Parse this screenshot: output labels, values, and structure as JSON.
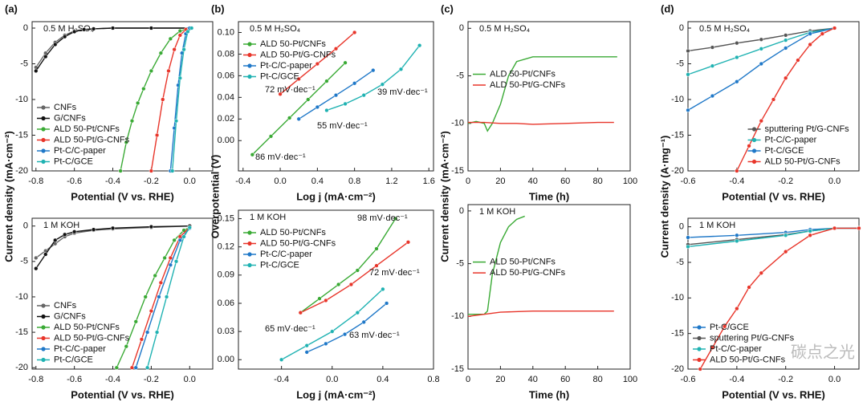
{
  "chart_data": [
    {
      "type": "line",
      "panel": "(a)",
      "condition": "0.5 M H₂SO₄",
      "xlabel": "Potential (V vs. RHE)",
      "ylabel": "Current density (mA·cm⁻²)",
      "markers": true,
      "legend": "lower left",
      "xlim": [
        -0.82,
        0.12
      ],
      "xticks": [
        -0.8,
        -0.6,
        -0.4,
        -0.2,
        {
          "value": 0,
          "label": "0.0"
        }
      ],
      "ylim": [
        -20,
        0.9
      ],
      "yticks": [
        0,
        -5,
        -10,
        -15,
        -20
      ],
      "series": [
        {
          "name": "CNFs",
          "color": "#666666",
          "x": [
            -0.8,
            -0.75,
            -0.7,
            -0.65,
            -0.6,
            -0.55,
            -0.5,
            -0.4,
            -0.2,
            0
          ],
          "values": [
            -5.5,
            -3.5,
            -2,
            -1,
            -0.4,
            -0.2,
            -0.1,
            0,
            0,
            0
          ]
        },
        {
          "name": "G/CNFs",
          "color": "#111111",
          "x": [
            -0.8,
            -0.75,
            -0.7,
            -0.65,
            -0.6,
            -0.55,
            -0.5,
            -0.4,
            -0.2,
            0
          ],
          "values": [
            -6,
            -4,
            -2.3,
            -1.2,
            -0.5,
            -0.2,
            -0.1,
            0,
            0,
            0
          ]
        },
        {
          "name": "ALD 50-Pt/CNFs",
          "color": "#3aaa35",
          "x": [
            -0.36,
            -0.33,
            -0.3,
            -0.27,
            -0.24,
            -0.2,
            -0.15,
            -0.1,
            -0.05,
            0
          ],
          "values": [
            -20,
            -16,
            -13,
            -10.5,
            -8.5,
            -6,
            -3.5,
            -1.5,
            -0.4,
            0
          ]
        },
        {
          "name": "ALD 50-Pt/G-CNFs",
          "color": "#e8352a",
          "x": [
            -0.2,
            -0.17,
            -0.14,
            -0.11,
            -0.08,
            -0.05,
            -0.02,
            0
          ],
          "values": [
            -20,
            -15,
            -10,
            -6,
            -3,
            -1,
            -0.2,
            0
          ]
        },
        {
          "name": "Pt-C/C-paper",
          "color": "#1f78c8",
          "x": [
            -0.1,
            -0.08,
            -0.06,
            -0.04,
            -0.02,
            0
          ],
          "values": [
            -20,
            -14,
            -8,
            -3.5,
            -0.8,
            0
          ]
        },
        {
          "name": "Pt-C/GCE",
          "color": "#1fb2b2",
          "x": [
            -0.09,
            -0.07,
            -0.05,
            -0.03,
            -0.01,
            0.01
          ],
          "values": [
            -20,
            -13,
            -7,
            -3,
            -0.5,
            0
          ]
        }
      ]
    },
    {
      "type": "line",
      "condition": "1 M KOH",
      "xlabel": "Potential (V vs. RHE)",
      "markers": true,
      "legend": "lower left",
      "xlim": [
        -0.82,
        0.12
      ],
      "xticks": [
        -0.8,
        -0.6,
        -0.4,
        -0.2,
        {
          "value": 0,
          "label": "0.0"
        }
      ],
      "ylim": [
        -20.2,
        1.1
      ],
      "yticks": [
        0,
        -5,
        -10,
        -15,
        -20
      ],
      "series": [
        {
          "name": "CNFs",
          "color": "#666666",
          "x": [
            -0.8,
            -0.75,
            -0.7,
            -0.65,
            -0.6,
            -0.5,
            -0.4,
            -0.2,
            0
          ],
          "values": [
            -4.5,
            -3.5,
            -2.5,
            -1.5,
            -1,
            -0.6,
            -0.4,
            -0.2,
            0
          ]
        },
        {
          "name": "G/CNFs",
          "color": "#111111",
          "x": [
            -0.8,
            -0.75,
            -0.7,
            -0.65,
            -0.6,
            -0.5,
            -0.4,
            -0.2,
            0
          ],
          "values": [
            -6,
            -4,
            -2,
            -1.2,
            -0.8,
            -0.5,
            -0.3,
            -0.1,
            0
          ]
        },
        {
          "name": "ALD 50-Pt/CNFs",
          "color": "#3aaa35",
          "x": [
            -0.38,
            -0.33,
            -0.28,
            -0.23,
            -0.18,
            -0.13,
            -0.08,
            -0.03,
            0
          ],
          "values": [
            -20,
            -17,
            -13.5,
            -10,
            -7,
            -4.5,
            -2,
            -0.6,
            -0.2
          ]
        },
        {
          "name": "ALD 50-Pt/G-CNFs",
          "color": "#e8352a",
          "x": [
            -0.3,
            -0.25,
            -0.2,
            -0.15,
            -0.1,
            -0.05,
            0
          ],
          "values": [
            -20,
            -16,
            -12,
            -8,
            -4.5,
            -1.5,
            -0.2
          ]
        },
        {
          "name": "Pt-C/C-paper",
          "color": "#1f78c8",
          "x": [
            -0.28,
            -0.22,
            -0.16,
            -0.1,
            -0.05,
            0
          ],
          "values": [
            -20,
            -15,
            -10,
            -5.5,
            -2,
            -0.3
          ]
        },
        {
          "name": "Pt-C/GCE",
          "color": "#1fb2b2",
          "x": [
            -0.22,
            -0.17,
            -0.12,
            -0.07,
            -0.03,
            0
          ],
          "values": [
            -20,
            -15,
            -10,
            -5,
            -1.5,
            -0.2
          ]
        }
      ]
    },
    {
      "type": "line",
      "panel": "(b)",
      "condition": "0.5 M H₂SO₄",
      "xlabel": "Log j (mA·cm⁻²)",
      "ylabel": "Overpotential (V)",
      "markers": true,
      "legend": "upper left",
      "xlim": [
        -0.45,
        1.65
      ],
      "xticks": [
        -0.4,
        {
          "value": 0,
          "label": "0.0"
        },
        0.4,
        0.8,
        1.2,
        1.6
      ],
      "ylim": [
        -0.028,
        0.11
      ],
      "yticks": [
        {
          "value": 0,
          "label": "0.00"
        },
        0.02,
        0.04,
        0.06,
        0.08,
        {
          "value": 0.1,
          "label": "0.10"
        }
      ],
      "annotations": [
        "72 mV·dec⁻¹",
        "55 mV·dec⁻¹",
        "39 mV·dec⁻¹",
        "86 mV·dec⁻¹"
      ],
      "series": [
        {
          "name": "ALD 50-Pt/CNFs",
          "color": "#3aaa35",
          "x": [
            -0.3,
            -0.1,
            0.1,
            0.3,
            0.5,
            0.7
          ],
          "values": [
            -0.013,
            0.004,
            0.021,
            0.038,
            0.055,
            0.072
          ]
        },
        {
          "name": "ALD 50-Pt/G-CNFs",
          "color": "#e8352a",
          "x": [
            0,
            0.2,
            0.4,
            0.6,
            0.8
          ],
          "values": [
            0.043,
            0.057,
            0.071,
            0.085,
            0.1
          ]
        },
        {
          "name": "Pt-C/C-paper",
          "color": "#1f78c8",
          "x": [
            0.2,
            0.4,
            0.6,
            0.8,
            1.0
          ],
          "values": [
            0.02,
            0.031,
            0.042,
            0.053,
            0.065
          ]
        },
        {
          "name": "Pt-C/GCE",
          "color": "#1fb2b2",
          "x": [
            0.5,
            0.7,
            0.9,
            1.1,
            1.3,
            1.5
          ],
          "values": [
            0.028,
            0.034,
            0.042,
            0.052,
            0.066,
            0.088
          ]
        }
      ]
    },
    {
      "type": "line",
      "condition": "1 M KOH",
      "xlabel": "Log j (mA·cm⁻²)",
      "markers": true,
      "legend": "upper left",
      "xlim": [
        -0.74,
        0.8
      ],
      "xticks": [
        -0.4,
        {
          "value": 0,
          "label": "0.0"
        },
        0.4,
        0.8
      ],
      "ylim": [
        -0.01,
        0.159
      ],
      "yticks": [
        {
          "value": 0,
          "label": "0.00"
        },
        0.03,
        0.06,
        0.09,
        0.12,
        0.15
      ],
      "annotations": [
        "98 mV·dec⁻¹",
        "72 mV·dec⁻¹",
        "65 mV·dec⁻¹",
        "63 mV·dec⁻¹"
      ],
      "series": [
        {
          "name": "ALD 50-Pt/CNFs",
          "color": "#3aaa35",
          "x": [
            -0.25,
            -0.1,
            0.05,
            0.2,
            0.35,
            0.5
          ],
          "values": [
            0.05,
            0.065,
            0.08,
            0.095,
            0.118,
            0.15
          ]
        },
        {
          "name": "ALD 50-Pt/G-CNFs",
          "color": "#e8352a",
          "x": [
            -0.25,
            -0.05,
            0.15,
            0.35,
            0.6
          ],
          "values": [
            0.05,
            0.063,
            0.08,
            0.1,
            0.125
          ]
        },
        {
          "name": "Pt-C/C-paper",
          "color": "#1f78c8",
          "x": [
            -0.2,
            -0.05,
            0.1,
            0.25,
            0.43
          ],
          "values": [
            0.008,
            0.017,
            0.027,
            0.04,
            0.06
          ]
        },
        {
          "name": "Pt-C/GCE",
          "color": "#1fb2b2",
          "x": [
            -0.4,
            -0.2,
            0,
            0.2,
            0.4
          ],
          "values": [
            0,
            0.015,
            0.03,
            0.05,
            0.075
          ]
        }
      ]
    },
    {
      "type": "line",
      "panel": "(c)",
      "condition": "0.5 M H₂SO₄",
      "xlabel": "Time (h)",
      "ylabel": "Current density (mA·cm⁻²)",
      "markers": false,
      "legend": "center left",
      "xlim": [
        0,
        100
      ],
      "xticks": [
        0,
        20,
        40,
        60,
        80,
        100
      ],
      "ylim": [
        -15,
        0.7
      ],
      "yticks": [
        0,
        -5,
        -10,
        -15
      ],
      "series": [
        {
          "name": "ALD 50-Pt/CNFs",
          "color": "#3aaa35",
          "x": [
            0,
            5,
            10,
            12,
            15,
            20,
            25,
            30,
            40,
            60,
            80,
            90,
            92
          ],
          "values": [
            -10,
            -9.8,
            -10,
            -10.8,
            -10,
            -8,
            -5,
            -3.5,
            -3,
            -3,
            -3,
            -3,
            -3
          ]
        },
        {
          "name": "ALD 50-Pt/G-CNFs",
          "color": "#e8352a",
          "x": [
            0,
            10,
            20,
            30,
            40,
            60,
            80,
            90
          ],
          "values": [
            -9.9,
            -9.9,
            -10,
            -10,
            -10.1,
            -10,
            -9.9,
            -9.9
          ]
        }
      ]
    },
    {
      "type": "line",
      "condition": "1 M KOH",
      "xlabel": "Time (h)",
      "markers": false,
      "legend": "center left",
      "xlim": [
        0,
        100
      ],
      "xticks": [
        0,
        20,
        40,
        60,
        80,
        100
      ],
      "ylim": [
        -15,
        0.6
      ],
      "yticks": [
        0,
        -5,
        -10,
        -15
      ],
      "series": [
        {
          "name": "ALD 50-Pt/CNFs",
          "color": "#3aaa35",
          "x": [
            0,
            10,
            12,
            15,
            20,
            25,
            30,
            35
          ],
          "values": [
            -9.8,
            -9.8,
            -9.5,
            -6,
            -3,
            -1.5,
            -0.8,
            -0.5
          ]
        },
        {
          "name": "ALD 50-Pt/G-CNFs",
          "color": "#e8352a",
          "x": [
            0,
            10,
            20,
            40,
            60,
            80,
            90
          ],
          "values": [
            -10,
            -9.8,
            -9.6,
            -9.5,
            -9.5,
            -9.5,
            -9.5
          ]
        }
      ]
    },
    {
      "type": "line",
      "panel": "(d)",
      "condition": "0.5 M H₂SO₄",
      "xlabel": "Potential (V vs. RHE)",
      "ylabel": "Current density (A·mg⁻¹)",
      "markers": true,
      "legend": "lower right",
      "xlim": [
        -0.6,
        0.1
      ],
      "xticks": [
        -0.6,
        -0.4,
        -0.2,
        {
          "value": 0,
          "label": "0.0"
        }
      ],
      "ylim": [
        -20,
        0.9
      ],
      "yticks": [
        0,
        -5,
        -10,
        -15,
        -20
      ],
      "series": [
        {
          "name": "sputtering Pt/G-CNFs",
          "color": "#555555",
          "x": [
            -0.6,
            -0.5,
            -0.4,
            -0.3,
            -0.2,
            -0.1,
            0
          ],
          "values": [
            -3.2,
            -2.7,
            -2.1,
            -1.6,
            -1,
            -0.4,
            0
          ]
        },
        {
          "name": "Pt-C/C-paper",
          "color": "#1fb2b2",
          "x": [
            -0.6,
            -0.5,
            -0.4,
            -0.3,
            -0.2,
            -0.1,
            0
          ],
          "values": [
            -6.5,
            -5.3,
            -4.1,
            -2.9,
            -1.7,
            -0.6,
            0
          ]
        },
        {
          "name": "Pt-C/GCE",
          "color": "#1f78c8",
          "x": [
            -0.6,
            -0.5,
            -0.4,
            -0.3,
            -0.2,
            -0.1,
            0
          ],
          "values": [
            -11.5,
            -9.5,
            -7.5,
            -5,
            -2.8,
            -0.8,
            0
          ]
        },
        {
          "name": "ALD 50-Pt/G-CNFs",
          "color": "#e8352a",
          "x": [
            -0.4,
            -0.35,
            -0.3,
            -0.25,
            -0.2,
            -0.15,
            -0.1,
            -0.05,
            0
          ],
          "values": [
            -20,
            -16.5,
            -13,
            -10,
            -7,
            -4.5,
            -2.3,
            -0.8,
            0
          ]
        }
      ]
    },
    {
      "type": "line",
      "condition": "1 M KOH",
      "xlabel": "Potential (V vs. RHE)",
      "markers": true,
      "legend": "lower left",
      "watermark": "碳点之光",
      "xlim": [
        -0.6,
        0.1
      ],
      "xticks": [
        -0.6,
        -0.4,
        -0.2,
        {
          "value": 0,
          "label": "0.0"
        }
      ],
      "ylim": [
        -20,
        1.2
      ],
      "yticks": [
        0,
        -5,
        -10,
        -15,
        -20
      ],
      "series": [
        {
          "name": "Pt-C/GCE",
          "color": "#1f78c8",
          "x": [
            -0.6,
            -0.4,
            -0.2,
            -0.1,
            0,
            0.1
          ],
          "values": [
            -1.5,
            -1.2,
            -0.8,
            -0.4,
            -0.2,
            -0.2
          ]
        },
        {
          "name": "sputtering Pt/G-CNFs",
          "color": "#555555",
          "x": [
            -0.6,
            -0.4,
            -0.2,
            -0.1,
            0,
            0.1
          ],
          "values": [
            -2.5,
            -1.8,
            -1.1,
            -0.6,
            -0.2,
            -0.2
          ]
        },
        {
          "name": "Pt-C/C-paper",
          "color": "#1fb2b2",
          "x": [
            -0.6,
            -0.4,
            -0.2,
            -0.1,
            0,
            0.1
          ],
          "values": [
            -2.8,
            -2,
            -1.2,
            -0.6,
            -0.2,
            -0.2
          ]
        },
        {
          "name": "ALD 50-Pt/G-CNFs",
          "color": "#e8352a",
          "x": [
            -0.55,
            -0.5,
            -0.45,
            -0.4,
            -0.35,
            -0.3,
            -0.2,
            -0.1,
            0,
            0.1
          ],
          "values": [
            -20,
            -17,
            -14,
            -11.5,
            -8.5,
            -6.5,
            -3.5,
            -1.2,
            -0.2,
            -0.2
          ]
        }
      ]
    }
  ]
}
